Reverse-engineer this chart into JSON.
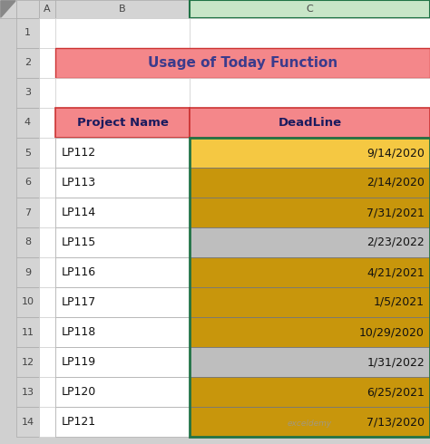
{
  "title": "Usage of Today Function",
  "title_bg": "#F4878A",
  "title_color": "#3B3B8C",
  "header_bg": "#F4878A",
  "header_color": "#1a1a5e",
  "col_headers": [
    "Project Name",
    "DeadLine"
  ],
  "rows": [
    {
      "name": "LP112",
      "date": "9/14/2020",
      "color": "#F5C842"
    },
    {
      "name": "LP113",
      "date": "2/14/2020",
      "color": "#C8960C"
    },
    {
      "name": "LP114",
      "date": "7/31/2021",
      "color": "#C8960C"
    },
    {
      "name": "LP115",
      "date": "2/23/2022",
      "color": "#BEBEBE"
    },
    {
      "name": "LP116",
      "date": "4/21/2021",
      "color": "#C8960C"
    },
    {
      "name": "LP117",
      "date": "1/5/2021",
      "color": "#C8960C"
    },
    {
      "name": "LP118",
      "date": "10/29/2020",
      "color": "#C8960C"
    },
    {
      "name": "LP119",
      "date": "1/31/2022",
      "color": "#BEBEBE"
    },
    {
      "name": "LP120",
      "date": "6/25/2021",
      "color": "#C8960C"
    },
    {
      "name": "LP121",
      "date": "7/13/2020",
      "color": "#C8960C"
    }
  ],
  "excel_bg": "#D0D0D0",
  "col_a_label": "A",
  "col_b_label": "B",
  "col_c_label": "C",
  "row_numbers": [
    1,
    2,
    3,
    4,
    5,
    6,
    7,
    8,
    9,
    10,
    11,
    12,
    13,
    14
  ],
  "watermark": "exceldemy",
  "excel_header_bg": "#D4D4D4",
  "green_highlight": "#217346",
  "col_c_header_fill": "#C8E6C8"
}
